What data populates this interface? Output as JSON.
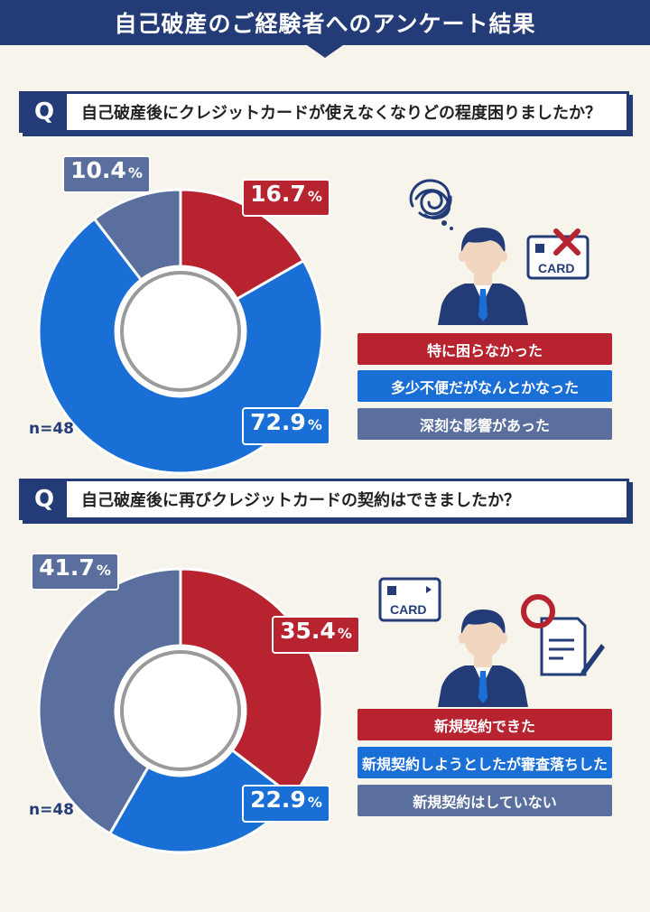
{
  "header": {
    "title": "自己破産のご経験者へのアンケート結果"
  },
  "colors": {
    "navy": "#233c78",
    "red": "#b82330",
    "blue": "#1a6fd6",
    "slate": "#5a6f9e",
    "background": "#f7f4ec"
  },
  "q1": {
    "badge": "Q",
    "question": "自己破産後にクレジットカードが使えなくなりどの程度困りましたか？",
    "n_label": "n=48",
    "legend": [
      "特に困らなかった",
      "多少不便だがなんとかなった",
      "深刻な影響があった"
    ],
    "labels": {
      "red": {
        "value": "16.7",
        "unit": "%"
      },
      "blue": {
        "value": "72.9",
        "unit": "%"
      },
      "slate": {
        "value": "10.4",
        "unit": "%"
      }
    },
    "icons": [
      "confused-thought-icon",
      "person-icon",
      "card-with-x-icon"
    ],
    "card_text": "CARD"
  },
  "q2": {
    "badge": "Q",
    "question": "自己破産後に再びクレジットカードの契約はできましたか？",
    "n_label": "n=48",
    "legend": [
      "新規契約できた",
      "新規契約しようとしたが審査落ちした",
      "新規契約はしていない"
    ],
    "labels": {
      "red": {
        "value": "35.4",
        "unit": "%"
      },
      "blue": {
        "value": "22.9",
        "unit": "%"
      },
      "slate": {
        "value": "41.7",
        "unit": "%"
      }
    },
    "icons": [
      "card-icon",
      "person-icon",
      "approved-contract-icon"
    ],
    "card_text": "CARD"
  },
  "chart_data": [
    {
      "type": "pie",
      "categories": [
        "特に困らなかった",
        "多少不便だがなんとかなった",
        "深刻な影響があった"
      ],
      "values": [
        16.7,
        72.9,
        10.4
      ],
      "colors": [
        "#b82330",
        "#1a6fd6",
        "#5a6f9e"
      ]
    },
    {
      "type": "pie",
      "categories": [
        "新規契約できた",
        "新規契約しようとしたが審査落ちした",
        "新規契約はしていない"
      ],
      "values": [
        35.4,
        22.9,
        41.7
      ],
      "colors": [
        "#b82330",
        "#1a6fd6",
        "#5a6f9e"
      ]
    }
  ]
}
